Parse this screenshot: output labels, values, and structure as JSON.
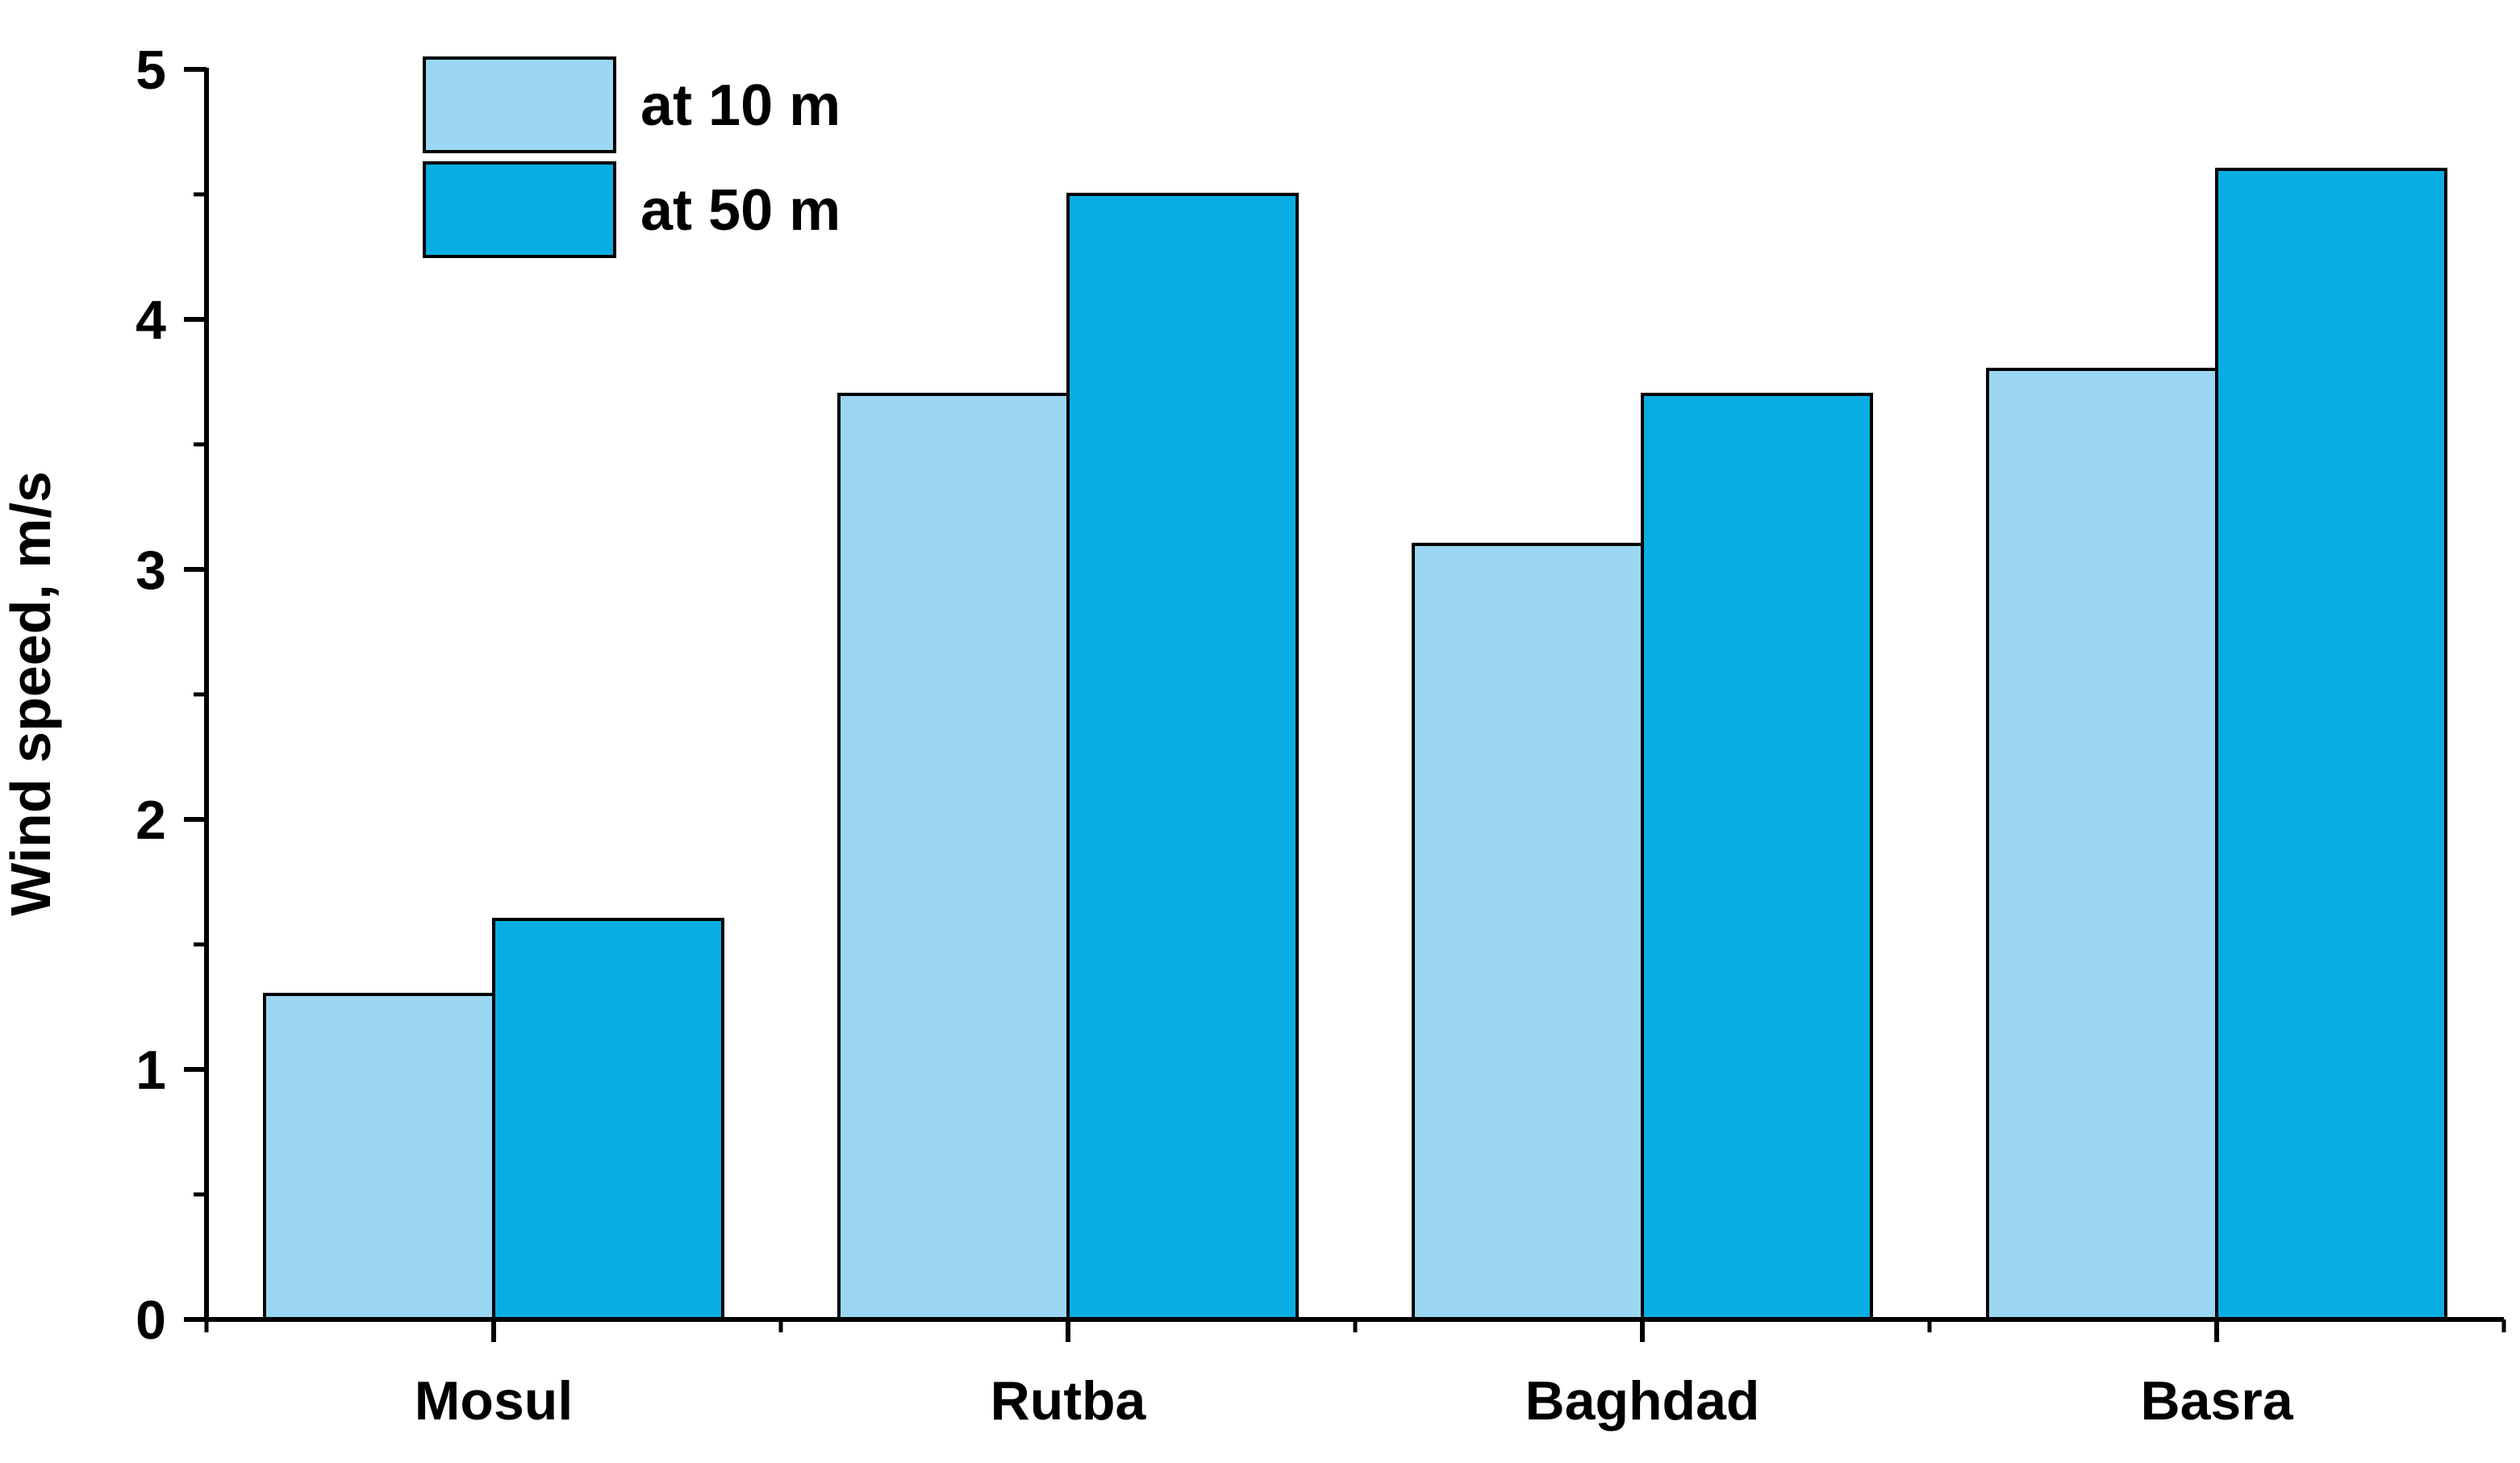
{
  "chart_data": {
    "type": "bar",
    "categories": [
      "Mosul",
      "Rutba",
      "Baghdad",
      "Basra"
    ],
    "series": [
      {
        "name": "at 10 m",
        "values": [
          1.3,
          3.7,
          3.1,
          3.8
        ],
        "color": "#9bd7f2"
      },
      {
        "name": "at 50 m",
        "values": [
          1.6,
          4.5,
          3.7,
          4.6
        ],
        "color": "#08ade3"
      }
    ],
    "ylabel": "Wind speed, m/s",
    "xlabel": "",
    "ylim": [
      0,
      5
    ],
    "yticks": [
      "0",
      "1",
      "2",
      "3",
      "4",
      "5"
    ],
    "grid": false,
    "legend_position": "top-left"
  }
}
